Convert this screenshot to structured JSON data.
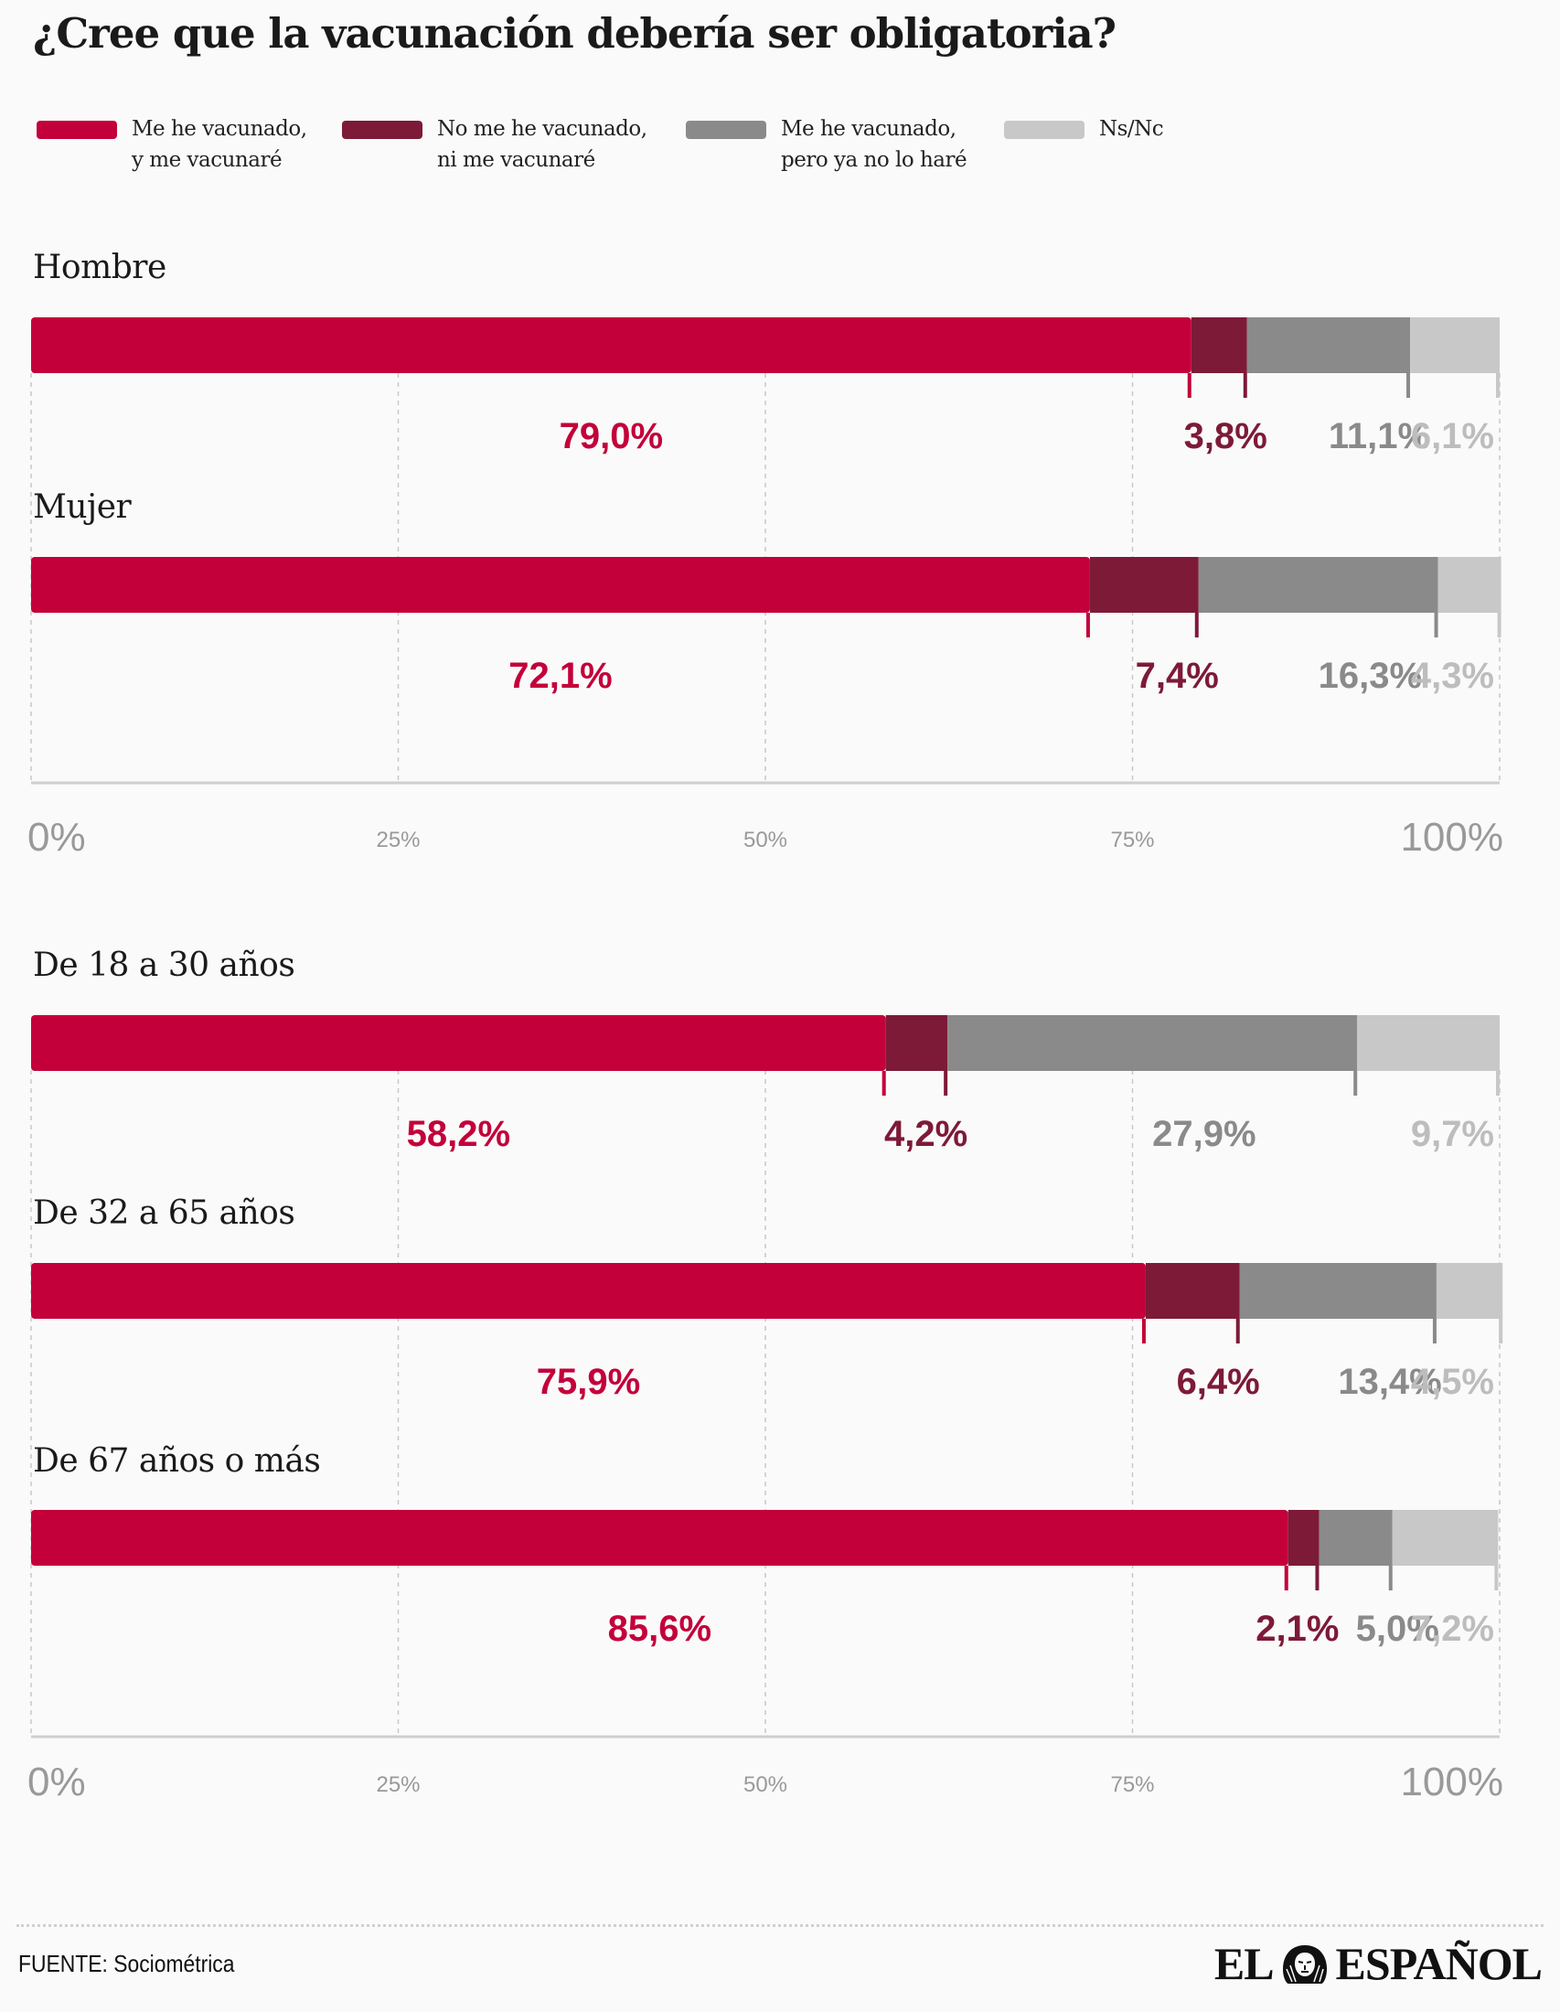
{
  "title": "¿Cree que la vacunación debería ser obligatoria?",
  "legend": [
    {
      "line1": "Me he vacunado,",
      "line2": "y me vacunaré",
      "color": "#c3003a"
    },
    {
      "line1": "No me he vacunado,",
      "line2": "ni me vacunaré",
      "color": "#7d1a38"
    },
    {
      "line1": "Me he vacunado,",
      "line2": "pero ya no lo haré",
      "color": "#8a8a8a"
    },
    {
      "line1": "Ns/Nc",
      "line2": "",
      "color": "#c8c8c8"
    }
  ],
  "label_colors": [
    "#c3003a",
    "#7d1a38",
    "#8a8a8a",
    "#bdbdbd"
  ],
  "chart_data": [
    {
      "type": "bar",
      "stacked": true,
      "orientation": "horizontal",
      "categories": [
        "Hombre",
        "Mujer"
      ],
      "series": [
        {
          "name": "Me he vacunado, y me vacunaré",
          "values": [
            79.0,
            72.1
          ]
        },
        {
          "name": "No me he vacunado, ni me vacunaré",
          "values": [
            3.8,
            7.4
          ]
        },
        {
          "name": "Me he vacunado, pero ya no lo haré",
          "values": [
            11.1,
            16.3
          ]
        },
        {
          "name": "Ns/Nc",
          "values": [
            6.1,
            4.3
          ]
        }
      ],
      "value_labels": [
        [
          "79,0%",
          "3,8%",
          "11,1%",
          "6,1%"
        ],
        [
          "72,1%",
          "7,4%",
          "16,3%",
          "4,3%"
        ]
      ],
      "xlim": [
        0,
        100
      ],
      "ticks": [
        "0%",
        "25%",
        "50%",
        "75%",
        "100%"
      ],
      "grid": true
    },
    {
      "type": "bar",
      "stacked": true,
      "orientation": "horizontal",
      "categories": [
        "De 18 a 30 años",
        "De 32 a 65 años",
        "De 67 años o más"
      ],
      "series": [
        {
          "name": "Me he vacunado, y me vacunaré",
          "values": [
            58.2,
            75.9,
            85.6
          ]
        },
        {
          "name": "No me he vacunado, ni me vacunaré",
          "values": [
            4.2,
            6.4,
            2.1
          ]
        },
        {
          "name": "Me he vacunado, pero ya no lo haré",
          "values": [
            27.9,
            13.4,
            5.0
          ]
        },
        {
          "name": "Ns/Nc",
          "values": [
            9.7,
            4.5,
            7.2
          ]
        }
      ],
      "value_labels": [
        [
          "58,2%",
          "4,2%",
          "27,9%",
          "9,7%"
        ],
        [
          "75,9%",
          "6,4%",
          "13,4%",
          "4,5%"
        ],
        [
          "85,6%",
          "2,1%",
          "5,0%",
          "7,2%"
        ]
      ],
      "xlim": [
        0,
        100
      ],
      "ticks": [
        "0%",
        "25%",
        "50%",
        "75%",
        "100%"
      ],
      "grid": true
    }
  ],
  "footer": {
    "source": "FUENTE: Sociométrica",
    "logo_left": "EL",
    "logo_right": "ESPAÑOL",
    "logo_icon": "lion-icon"
  }
}
